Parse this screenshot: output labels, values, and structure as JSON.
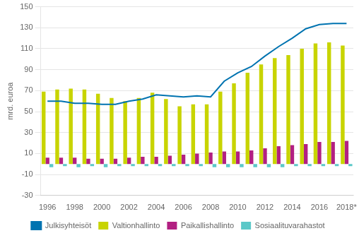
{
  "chart_data": {
    "type": "bar",
    "ylabel": "mrd. euroa",
    "categories": [
      "1996",
      null,
      "1998",
      null,
      "2000",
      null,
      "2002",
      null,
      "2004",
      null,
      "2006",
      null,
      "2008",
      null,
      "2010",
      null,
      "2012",
      null,
      "2014",
      null,
      "2016",
      null,
      "2018*"
    ],
    "series": [
      {
        "name": "Valtionhallinto",
        "color": "#c8d400",
        "values": [
          69,
          71,
          72,
          71,
          67,
          63,
          60,
          63,
          68,
          62,
          55,
          57,
          57,
          69,
          77,
          87,
          95,
          101,
          104,
          110,
          115,
          116,
          113
        ]
      },
      {
        "name": "Paikallishallinto",
        "color": "#b22082",
        "values": [
          6,
          6,
          6,
          5,
          5,
          5,
          6,
          7,
          7,
          8,
          9,
          10,
          11,
          12,
          12,
          13,
          15,
          17,
          18,
          19,
          21,
          21,
          22
        ]
      },
      {
        "name": "Sosiaalituvarahastot",
        "color": "#5bc8c8",
        "values": [
          -3,
          -2,
          -3,
          -2,
          -3,
          -2,
          -2,
          -2,
          -2,
          -2,
          -2,
          -2,
          -3,
          -3,
          -3,
          -3,
          -3,
          -3,
          -2,
          -2,
          -2,
          -2,
          -2
        ]
      },
      {
        "name": "Julkisyhteisöt",
        "type": "line",
        "color": "#0073b0",
        "values": [
          60,
          60,
          58,
          58,
          57,
          57,
          60,
          62,
          66,
          65,
          64,
          65,
          64,
          79,
          87,
          93,
          103,
          112,
          120,
          129,
          133,
          134,
          134
        ]
      }
    ],
    "ylim": [
      -30,
      150
    ],
    "yticks": [
      -30,
      -10,
      10,
      30,
      50,
      70,
      90,
      110,
      130,
      150
    ],
    "grid": true,
    "legend": "bottom"
  }
}
